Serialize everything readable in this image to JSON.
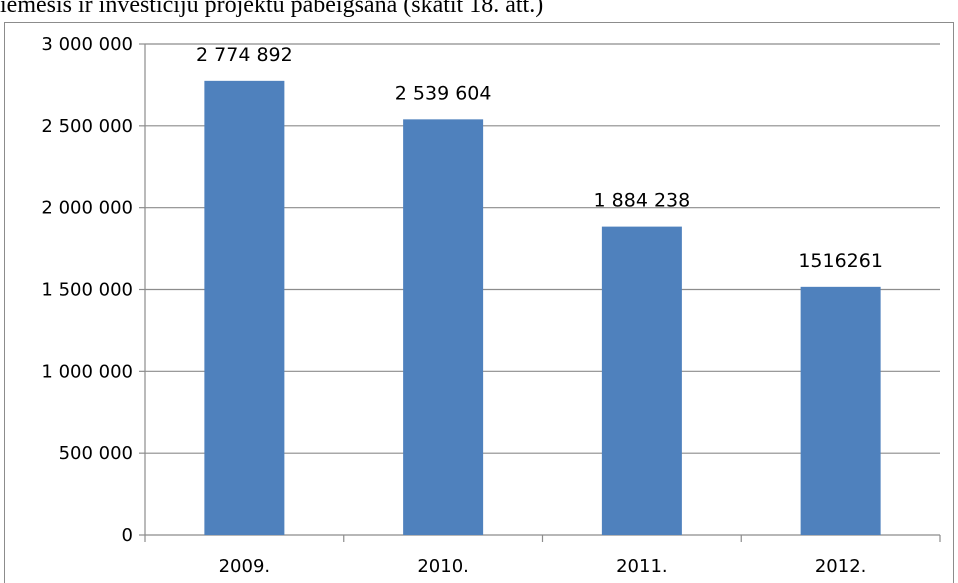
{
  "caption": "iemesis ir investīciju projektu pabeigšana (skatīt 18. att.)",
  "colors": {
    "bar": "#4f81bd",
    "gridline": "#8c8c8c",
    "axis": "#8c8c8c"
  },
  "chart_data": {
    "type": "bar",
    "categories": [
      "2009.",
      "2010.",
      "2011.",
      "2012."
    ],
    "values": [
      2774892,
      2539604,
      1884238,
      1516261
    ],
    "data_labels": [
      "2 774 892",
      "2 539 604",
      "1 884 238",
      "1516261"
    ],
    "y_ticks": [
      0,
      500000,
      1000000,
      1500000,
      2000000,
      2500000,
      3000000
    ],
    "y_tick_labels": [
      "0",
      "500 000",
      "1 000 000",
      "1 500 000",
      "2 000 000",
      "2 500 000",
      "3 000 000"
    ],
    "ylim": [
      0,
      3000000
    ],
    "grid": true,
    "legend": "none",
    "title": "",
    "xlabel": "",
    "ylabel": ""
  }
}
